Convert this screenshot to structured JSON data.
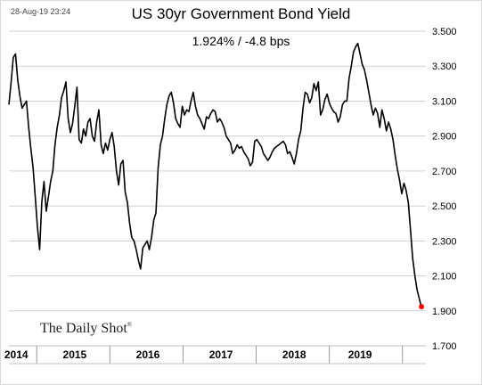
{
  "timestamp": "28-Aug-19 23:24",
  "brand": {
    "name": "The Daily Shot",
    "mark": "®"
  },
  "chart_data": {
    "type": "line",
    "title": "US 30yr Government Bond Yield",
    "subtitle": "1.924%  /  -4.8 bps",
    "xlabel": "",
    "ylabel": "",
    "ylim": [
      1.7,
      3.5
    ],
    "yticks": [
      "3.500",
      "3.300",
      "3.100",
      "2.900",
      "2.700",
      "2.500",
      "2.300",
      "2.100",
      "1.900",
      "1.700"
    ],
    "ytick_values": [
      3.5,
      3.3,
      3.1,
      2.9,
      2.7,
      2.5,
      2.3,
      2.1,
      1.9,
      1.7
    ],
    "xlim": [
      2014.0,
      2019.7
    ],
    "xticks": [
      "2014",
      "2015",
      "2016",
      "2017",
      "2018",
      "2019"
    ],
    "xtick_positions": [
      2014.1,
      2014.9,
      2015.9,
      2016.9,
      2017.9,
      2018.8
    ],
    "year_boundaries": [
      2014.38,
      2015.38,
      2016.38,
      2017.38,
      2018.38,
      2019.38
    ],
    "grid": true,
    "line_color": "#000000",
    "last_point_color": "#ff0000",
    "series": [
      {
        "x": [
          2014.0,
          2014.03,
          2014.06,
          2014.09,
          2014.12,
          2014.15,
          2014.18,
          2014.21,
          2014.24,
          2014.27,
          2014.3,
          2014.33,
          2014.36,
          2014.39,
          2014.42,
          2014.45,
          2014.48,
          2014.51,
          2014.54,
          2014.57,
          2014.6,
          2014.63,
          2014.66,
          2014.69,
          2014.72,
          2014.75,
          2014.78,
          2014.81,
          2014.84,
          2014.87,
          2014.9,
          2014.93,
          2014.96,
          2014.99,
          2015.02,
          2015.05,
          2015.08,
          2015.11,
          2015.14,
          2015.17,
          2015.2,
          2015.23,
          2015.26,
          2015.29,
          2015.32,
          2015.35,
          2015.38,
          2015.41,
          2015.44,
          2015.47,
          2015.5,
          2015.53,
          2015.56,
          2015.59,
          2015.62,
          2015.65,
          2015.68,
          2015.71,
          2015.74,
          2015.77,
          2015.8,
          2015.83,
          2015.86,
          2015.89,
          2015.92,
          2015.95,
          2015.98,
          2016.01,
          2016.04,
          2016.07,
          2016.1,
          2016.13,
          2016.16,
          2016.19,
          2016.22,
          2016.25,
          2016.28,
          2016.31,
          2016.34,
          2016.37,
          2016.4,
          2016.43,
          2016.46,
          2016.49,
          2016.52,
          2016.55,
          2016.58,
          2016.61,
          2016.64,
          2016.67,
          2016.7,
          2016.73,
          2016.76,
          2016.79,
          2016.82,
          2016.85,
          2016.88,
          2016.91,
          2016.94,
          2016.97,
          2017.0,
          2017.03,
          2017.06,
          2017.09,
          2017.12,
          2017.15,
          2017.18,
          2017.21,
          2017.24,
          2017.27,
          2017.3,
          2017.33,
          2017.36,
          2017.39,
          2017.42,
          2017.45,
          2017.48,
          2017.51,
          2017.54,
          2017.57,
          2017.6,
          2017.63,
          2017.66,
          2017.69,
          2017.72,
          2017.75,
          2017.78,
          2017.81,
          2017.84,
          2017.87,
          2017.9,
          2017.93,
          2017.96,
          2017.99,
          2018.02,
          2018.05,
          2018.08,
          2018.11,
          2018.14,
          2018.17,
          2018.2,
          2018.23,
          2018.26,
          2018.29,
          2018.32,
          2018.35,
          2018.38,
          2018.41,
          2018.44,
          2018.47,
          2018.5,
          2018.53,
          2018.56,
          2018.59,
          2018.62,
          2018.65,
          2018.68,
          2018.71,
          2018.74,
          2018.77,
          2018.8,
          2018.83,
          2018.86,
          2018.89,
          2018.92,
          2018.95,
          2018.98,
          2019.01,
          2019.04,
          2019.07,
          2019.1,
          2019.13,
          2019.16,
          2019.19,
          2019.22,
          2019.25,
          2019.28,
          2019.31,
          2019.34,
          2019.37,
          2019.4,
          2019.43,
          2019.46,
          2019.49,
          2019.52,
          2019.55,
          2019.58,
          2019.61,
          2019.64
        ],
        "values": [
          3.08,
          3.21,
          3.35,
          3.37,
          3.22,
          3.13,
          3.06,
          3.08,
          3.1,
          2.95,
          2.83,
          2.72,
          2.55,
          2.38,
          2.25,
          2.52,
          2.64,
          2.47,
          2.55,
          2.64,
          2.7,
          2.85,
          2.95,
          3.02,
          3.12,
          3.16,
          3.21,
          3.0,
          2.92,
          2.97,
          3.07,
          3.18,
          2.88,
          2.86,
          2.94,
          2.9,
          2.98,
          3.0,
          2.9,
          2.87,
          2.98,
          3.05,
          2.85,
          2.8,
          2.86,
          2.82,
          2.88,
          2.92,
          2.84,
          2.7,
          2.62,
          2.74,
          2.76,
          2.58,
          2.52,
          2.4,
          2.32,
          2.3,
          2.25,
          2.19,
          2.14,
          2.26,
          2.28,
          2.3,
          2.25,
          2.32,
          2.42,
          2.46,
          2.72,
          2.85,
          2.9,
          3.0,
          3.08,
          3.13,
          3.15,
          3.09,
          3.0,
          2.97,
          2.95,
          3.07,
          3.02,
          3.05,
          3.04,
          3.1,
          3.15,
          3.07,
          3.02,
          3.0,
          2.97,
          2.94,
          3.01,
          3.0,
          3.03,
          3.05,
          3.04,
          2.98,
          3.0,
          2.98,
          2.95,
          2.9,
          2.88,
          2.86,
          2.8,
          2.82,
          2.85,
          2.83,
          2.84,
          2.81,
          2.79,
          2.77,
          2.73,
          2.75,
          2.87,
          2.88,
          2.86,
          2.84,
          2.8,
          2.78,
          2.76,
          2.78,
          2.81,
          2.83,
          2.84,
          2.85,
          2.86,
          2.87,
          2.85,
          2.8,
          2.81,
          2.78,
          2.74,
          2.8,
          2.88,
          2.93,
          3.06,
          3.15,
          3.14,
          3.09,
          3.12,
          3.2,
          3.16,
          3.21,
          3.02,
          3.05,
          3.11,
          3.14,
          3.09,
          3.06,
          3.04,
          3.03,
          2.98,
          3.01,
          3.08,
          3.1,
          3.1,
          3.23,
          3.3,
          3.38,
          3.41,
          3.43,
          3.37,
          3.31,
          3.28,
          3.22,
          3.15,
          3.08,
          3.02,
          3.06,
          3.03,
          2.95,
          3.05,
          3.0,
          2.93,
          2.98,
          2.94,
          2.88,
          2.79,
          2.71,
          2.65,
          2.57,
          2.63,
          2.59,
          2.52,
          2.36,
          2.2,
          2.1,
          2.02,
          1.97,
          1.92
        ],
        "last_value": 1.924
      }
    ]
  }
}
